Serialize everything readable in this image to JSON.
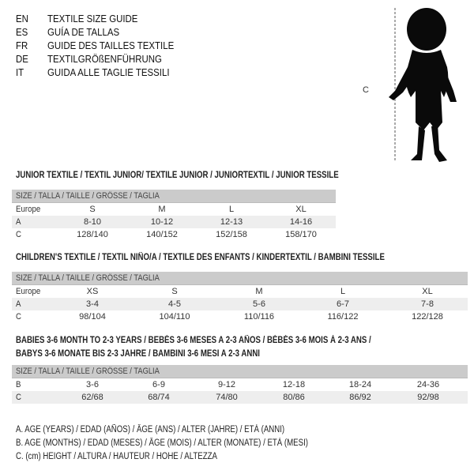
{
  "titles": [
    {
      "code": "EN",
      "text": "TEXTILE SIZE GUIDE"
    },
    {
      "code": "ES",
      "text": "GUÍA DE TALLAS"
    },
    {
      "code": "FR",
      "text": "GUIDE DES TAILLES TEXTILE"
    },
    {
      "code": "DE",
      "text": "TEXTILGRÖßENFÜHRUNG"
    },
    {
      "code": "IT",
      "text": "GUIDA ALLE TAGLIE TESSILI"
    }
  ],
  "figure": {
    "label": "C",
    "icon": "child-silhouette"
  },
  "size_header": "SIZE / TALLA / TAILLE / GRÖSSE / TAGLIA",
  "junior": {
    "title": "JUNIOR TEXTILE / TEXTIL JUNIOR/ TEXTILE JUNIOR / JUNIORTEXTIL / JUNIOR TESSILE",
    "rows": [
      {
        "label": "Europe",
        "values": [
          "S",
          "M",
          "L",
          "XL"
        ]
      },
      {
        "label": "A",
        "values": [
          "8-10",
          "10-12",
          "12-13",
          "14-16"
        ]
      },
      {
        "label": "C",
        "values": [
          "128/140",
          "140/152",
          "152/158",
          "158/170"
        ]
      }
    ]
  },
  "children": {
    "title": "CHILDREN'S TEXTILE / TEXTIL NIÑO/A / TEXTILE DES ENFANTS / KINDERTEXTIL / BAMBINI TESSILE",
    "rows": [
      {
        "label": "Europe",
        "values": [
          "XS",
          "S",
          "M",
          "L",
          "XL"
        ]
      },
      {
        "label": "A",
        "values": [
          "3-4",
          "4-5",
          "5-6",
          "6-7",
          "7-8"
        ]
      },
      {
        "label": "C",
        "values": [
          "98/104",
          "104/110",
          "110/116",
          "116/122",
          "122/128"
        ]
      }
    ]
  },
  "babies": {
    "title_line1": "BABIES 3-6 MONTH TO 2-3 YEARS / BEBÉS 3-6 MESES A 2-3 AÑOS / BÉBÉS 3-6 MOIS À 2-3 ANS /",
    "title_line2": "BABYS 3-6 MONATE BIS 2-3 JAHRE / BAMBINI 3-6 MESI A 2-3 ANNI",
    "rows": [
      {
        "label": "B",
        "values": [
          "3-6",
          "6-9",
          "9-12",
          "12-18",
          "18-24",
          "24-36"
        ]
      },
      {
        "label": "C",
        "values": [
          "62/68",
          "68/74",
          "74/80",
          "80/86",
          "86/92",
          "92/98"
        ]
      }
    ]
  },
  "legend": [
    "A. AGE (YEARS) / EDAD (AÑOS) / ÂGE (ANS) / ALTER (JAHRE) / ETÀ (ANNI)",
    "B. AGE (MONTHS) / EDAD (MESES) / ÂGE (MOIS) / ALTER (MONATE) / ETÀ (MESI)",
    "C. (cm) HEIGHT / ALTURA / HAUTEUR / HÖHE / ALTEZZA"
  ]
}
